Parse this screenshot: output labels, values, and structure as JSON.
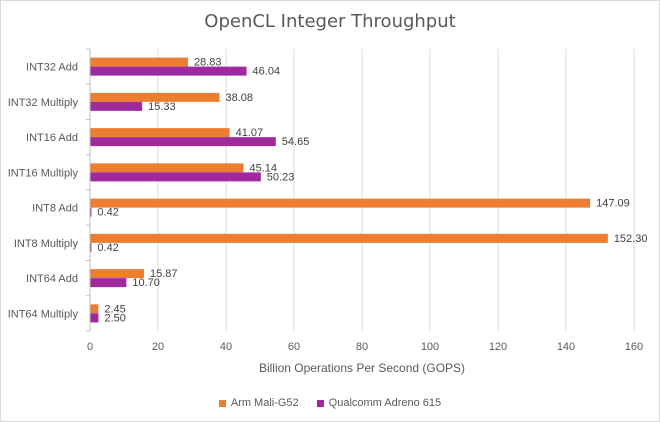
{
  "chart_data": {
    "type": "bar",
    "orientation": "horizontal",
    "title": "OpenCL Integer Throughput",
    "xlabel": "Billion Operations Per Second (GOPS)",
    "ylabel": "",
    "xlim": [
      0,
      160
    ],
    "xticks": [
      0,
      20,
      40,
      60,
      80,
      100,
      120,
      140,
      160
    ],
    "grid": true,
    "legend_position": "bottom",
    "categories": [
      "INT32 Add",
      "INT32 Multiply",
      "INT16 Add",
      "INT16 Multiply",
      "INT8 Add",
      "INT8 Multiply",
      "INT64 Add",
      "INT64 Multiply"
    ],
    "series": [
      {
        "name": "Arm Mali-G52",
        "color": "#ED7D31",
        "values": [
          28.83,
          38.08,
          41.07,
          45.14,
          147.09,
          152.3,
          15.87,
          2.45
        ],
        "labels": [
          "28.83",
          "38.08",
          "41.07",
          "45.14",
          "147.09",
          "152.30",
          "15.87",
          "2.45"
        ]
      },
      {
        "name": "Qualcomm Adreno 615",
        "color": "#9E2A9E",
        "values": [
          46.04,
          15.33,
          54.65,
          50.23,
          0.42,
          0.42,
          10.7,
          2.5
        ],
        "labels": [
          "46.04",
          "15.33",
          "54.65",
          "50.23",
          "0.42",
          "0.42",
          "10.70",
          "2.50"
        ]
      }
    ]
  }
}
